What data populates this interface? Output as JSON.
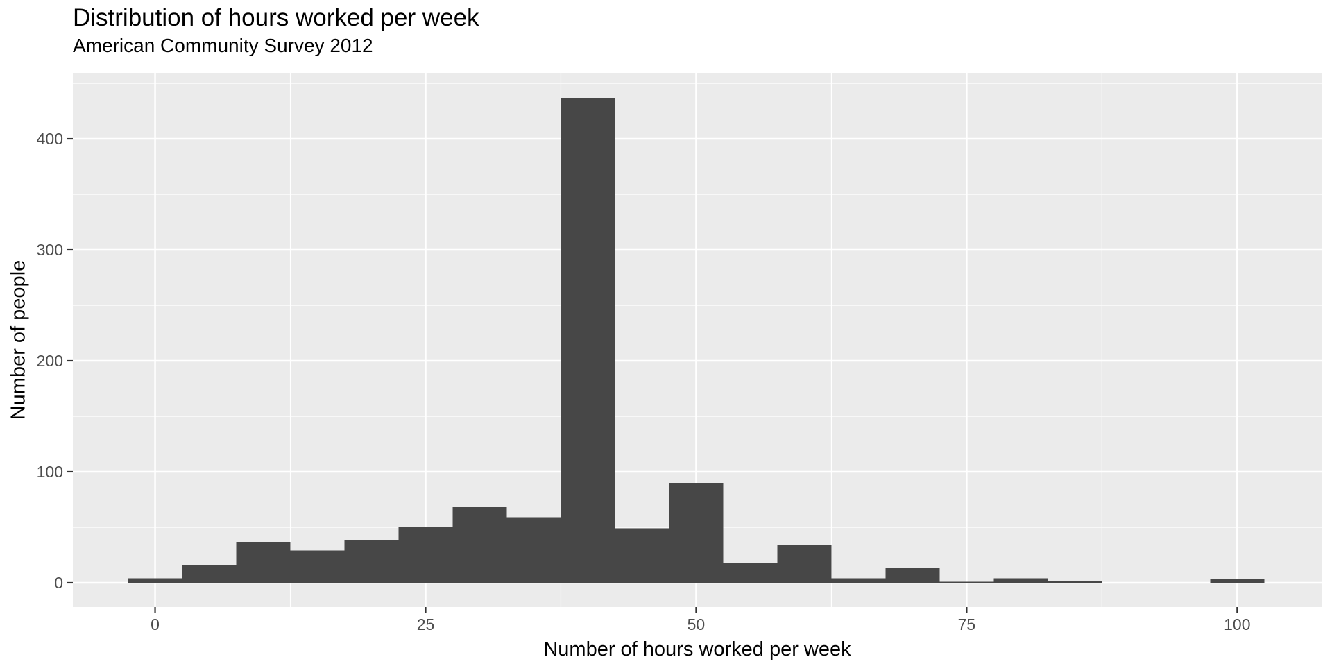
{
  "chart_data": {
    "type": "bar",
    "subtype": "histogram",
    "title": "Distribution of hours worked per week",
    "subtitle": "American Community Survey 2012",
    "xlabel": "Number of hours worked per week",
    "ylabel": "Number of people",
    "bin_width": 5,
    "bin_centers": [
      0,
      5,
      10,
      15,
      20,
      25,
      30,
      35,
      40,
      45,
      50,
      55,
      60,
      65,
      70,
      75,
      80,
      85,
      90,
      95,
      100
    ],
    "values": [
      4,
      16,
      37,
      29,
      38,
      50,
      68,
      59,
      437,
      49,
      90,
      18,
      34,
      4,
      13,
      1,
      4,
      2,
      0,
      0,
      3
    ],
    "x_ticks": [
      0,
      25,
      50,
      75,
      100
    ],
    "x_tick_labels": [
      "0",
      "25",
      "50",
      "75",
      "100"
    ],
    "x_minor_gridlines": [
      12.5,
      37.5,
      62.5,
      87.5
    ],
    "y_ticks": [
      0,
      100,
      200,
      300,
      400
    ],
    "y_tick_labels": [
      "0",
      "100",
      "200",
      "300",
      "400"
    ],
    "y_minor_gridlines": [
      50,
      150,
      250,
      350,
      450
    ],
    "xlim": [
      -7.6,
      107.8
    ],
    "ylim": [
      -21.9,
      459.4
    ],
    "grid": true,
    "legend_position": "none",
    "colors": {
      "bar_fill": "#474747",
      "panel_background": "#EBEBEB",
      "gridline": "#FFFFFF",
      "tick_mark": "#333333",
      "tick_label_text": "#4D4D4D",
      "title_text": "#000000"
    }
  }
}
